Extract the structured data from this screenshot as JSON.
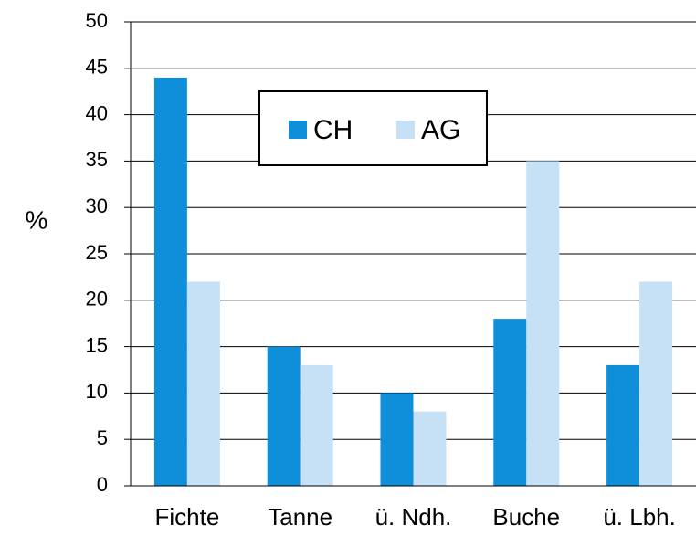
{
  "chart_data": {
    "type": "bar",
    "ylabel": "%",
    "categories": [
      "Fichte",
      "Tanne",
      "ü. Ndh.",
      "Buche",
      "ü. Lbh."
    ],
    "series": [
      {
        "name": "CH",
        "color": "#0f8fd9",
        "values": [
          44,
          15,
          10,
          18,
          13
        ]
      },
      {
        "name": "AG",
        "color": "#c6e1f5",
        "values": [
          22,
          13,
          8,
          35,
          22
        ]
      }
    ],
    "ylim": [
      0,
      50
    ],
    "yticks": [
      0,
      5,
      10,
      15,
      20,
      25,
      30,
      35,
      40,
      45,
      50
    ],
    "grid": true
  }
}
